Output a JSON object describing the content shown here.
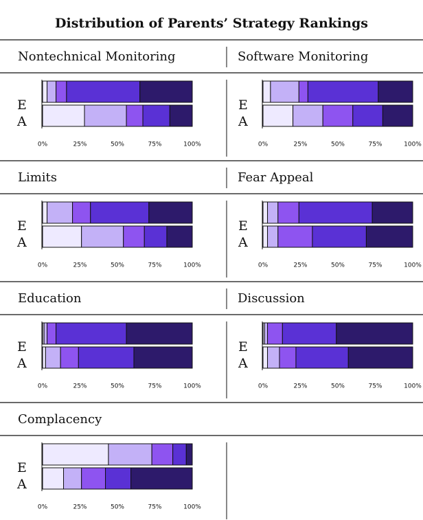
{
  "title": "Distribution of Parents’ Strategy Rankings",
  "chart_data": [
    {
      "type": "bar",
      "title": "Nontechnical Monitoring",
      "categories": [
        "E",
        "A"
      ],
      "series": [
        {
          "color": "#eeeaff",
          "values": [
            3,
            28
          ]
        },
        {
          "color": "#c3b1f7",
          "values": [
            6,
            28
          ]
        },
        {
          "color": "#8e54f0",
          "values": [
            7,
            11
          ]
        },
        {
          "color": "#5a31d5",
          "values": [
            49,
            18
          ]
        },
        {
          "color": "#2d1a6b",
          "values": [
            35,
            15
          ]
        }
      ],
      "xlim": [
        0,
        100
      ],
      "xticks": [
        {
          "value": 0,
          "label": "0%"
        },
        {
          "value": 25,
          "label": "25%"
        },
        {
          "value": 50,
          "label": "50%"
        },
        {
          "value": 75,
          "label": "75%"
        },
        {
          "value": 100,
          "label": "100%"
        }
      ]
    },
    {
      "type": "bar",
      "title": "Software Monitoring",
      "categories": [
        "E",
        "A"
      ],
      "series": [
        {
          "color": "#eeeaff",
          "values": [
            5,
            20
          ]
        },
        {
          "color": "#c3b1f7",
          "values": [
            19,
            20
          ]
        },
        {
          "color": "#8e54f0",
          "values": [
            6,
            20
          ]
        },
        {
          "color": "#5a31d5",
          "values": [
            47,
            20
          ]
        },
        {
          "color": "#2d1a6b",
          "values": [
            23,
            20
          ]
        }
      ],
      "xlim": [
        0,
        100
      ],
      "xticks": [
        {
          "value": 0,
          "label": "0%"
        },
        {
          "value": 25,
          "label": "25%"
        },
        {
          "value": 50,
          "label": "50%"
        },
        {
          "value": 75,
          "label": "75%"
        },
        {
          "value": 100,
          "label": "100%"
        }
      ]
    },
    {
      "type": "bar",
      "title": "Limits",
      "categories": [
        "E",
        "A"
      ],
      "series": [
        {
          "color": "#eeeaff",
          "values": [
            3,
            26
          ]
        },
        {
          "color": "#c3b1f7",
          "values": [
            17,
            28
          ]
        },
        {
          "color": "#8e54f0",
          "values": [
            12,
            14
          ]
        },
        {
          "color": "#5a31d5",
          "values": [
            39,
            15
          ]
        },
        {
          "color": "#2d1a6b",
          "values": [
            29,
            17
          ]
        }
      ],
      "xlim": [
        0,
        100
      ],
      "xticks": [
        {
          "value": 0,
          "label": "0%"
        },
        {
          "value": 25,
          "label": "25%"
        },
        {
          "value": 50,
          "label": "50%"
        },
        {
          "value": 75,
          "label": "75%"
        },
        {
          "value": 100,
          "label": "100%"
        }
      ]
    },
    {
      "type": "bar",
      "title": "Fear Appeal",
      "categories": [
        "E",
        "A"
      ],
      "series": [
        {
          "color": "#eeeaff",
          "values": [
            3,
            3
          ]
        },
        {
          "color": "#c3b1f7",
          "values": [
            7,
            7
          ]
        },
        {
          "color": "#8e54f0",
          "values": [
            14,
            23
          ]
        },
        {
          "color": "#5a31d5",
          "values": [
            49,
            36
          ]
        },
        {
          "color": "#2d1a6b",
          "values": [
            27,
            31
          ]
        }
      ],
      "xlim": [
        0,
        100
      ],
      "xticks": [
        {
          "value": 0,
          "label": "0%"
        },
        {
          "value": 25,
          "label": "25%"
        },
        {
          "value": 50,
          "label": "50%"
        },
        {
          "value": 75,
          "label": "75%"
        },
        {
          "value": 100,
          "label": "100%"
        }
      ]
    },
    {
      "type": "bar",
      "title": "Education",
      "categories": [
        "E",
        "A"
      ],
      "series": [
        {
          "color": "#eeeaff",
          "values": [
            1,
            2
          ]
        },
        {
          "color": "#c3b1f7",
          "values": [
            2,
            10
          ]
        },
        {
          "color": "#8e54f0",
          "values": [
            6,
            12
          ]
        },
        {
          "color": "#5a31d5",
          "values": [
            47,
            37
          ]
        },
        {
          "color": "#2d1a6b",
          "values": [
            44,
            39
          ]
        }
      ],
      "xlim": [
        0,
        100
      ],
      "xticks": [
        {
          "value": 0,
          "label": "0%"
        },
        {
          "value": 25,
          "label": "25%"
        },
        {
          "value": 50,
          "label": "50%"
        },
        {
          "value": 75,
          "label": "75%"
        },
        {
          "value": 100,
          "label": "100%"
        }
      ]
    },
    {
      "type": "bar",
      "title": "Discussion",
      "categories": [
        "E",
        "A"
      ],
      "series": [
        {
          "color": "#eeeaff",
          "values": [
            1,
            3
          ]
        },
        {
          "color": "#c3b1f7",
          "values": [
            2,
            8
          ]
        },
        {
          "color": "#8e54f0",
          "values": [
            10,
            11
          ]
        },
        {
          "color": "#5a31d5",
          "values": [
            36,
            35
          ]
        },
        {
          "color": "#2d1a6b",
          "values": [
            51,
            43
          ]
        }
      ],
      "xlim": [
        0,
        100
      ],
      "xticks": [
        {
          "value": 0,
          "label": "0%"
        },
        {
          "value": 25,
          "label": "25%"
        },
        {
          "value": 50,
          "label": "50%"
        },
        {
          "value": 75,
          "label": "75%"
        },
        {
          "value": 100,
          "label": "100%"
        }
      ]
    },
    {
      "type": "bar",
      "title": "Complacency",
      "categories": [
        "E",
        "A"
      ],
      "series": [
        {
          "color": "#eeeaff",
          "values": [
            44,
            14
          ]
        },
        {
          "color": "#c3b1f7",
          "values": [
            29,
            12
          ]
        },
        {
          "color": "#8e54f0",
          "values": [
            14,
            16
          ]
        },
        {
          "color": "#5a31d5",
          "values": [
            9,
            17
          ]
        },
        {
          "color": "#2d1a6b",
          "values": [
            4,
            41
          ]
        }
      ],
      "xlim": [
        0,
        100
      ],
      "xticks": [
        {
          "value": 0,
          "label": "0%"
        },
        {
          "value": 25,
          "label": "25%"
        },
        {
          "value": 50,
          "label": "50%"
        },
        {
          "value": 75,
          "label": "75%"
        },
        {
          "value": 100,
          "label": "100%"
        }
      ]
    }
  ]
}
